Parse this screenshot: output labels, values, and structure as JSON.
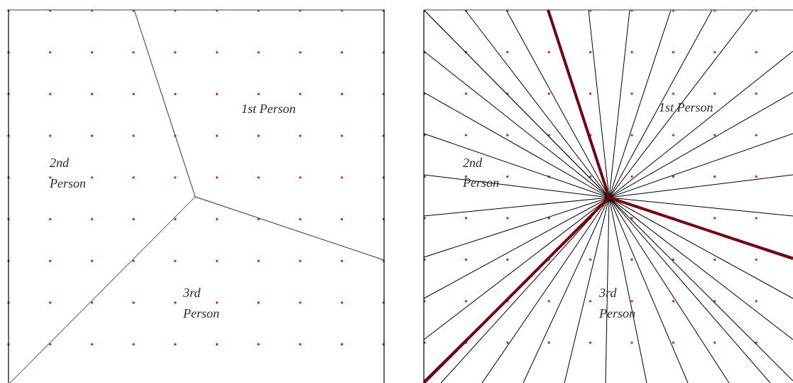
{
  "diagrams": [
    {
      "name": "region-partition",
      "labels": {
        "first": [
          "1st Person"
        ],
        "second": [
          "2nd",
          "Person"
        ],
        "third": [
          "3rd",
          "Person"
        ]
      }
    },
    {
      "name": "radial-cuts",
      "labels": {
        "first": [
          "1st Person"
        ],
        "second": [
          "2nd",
          "Person"
        ],
        "third": [
          "3rd",
          "Person"
        ]
      }
    }
  ],
  "colors": {
    "grid_dot": "#e02020",
    "boundary": "#555555",
    "ray": "#000000",
    "highlight_ray": "#7a0010",
    "frame": "#000000"
  }
}
